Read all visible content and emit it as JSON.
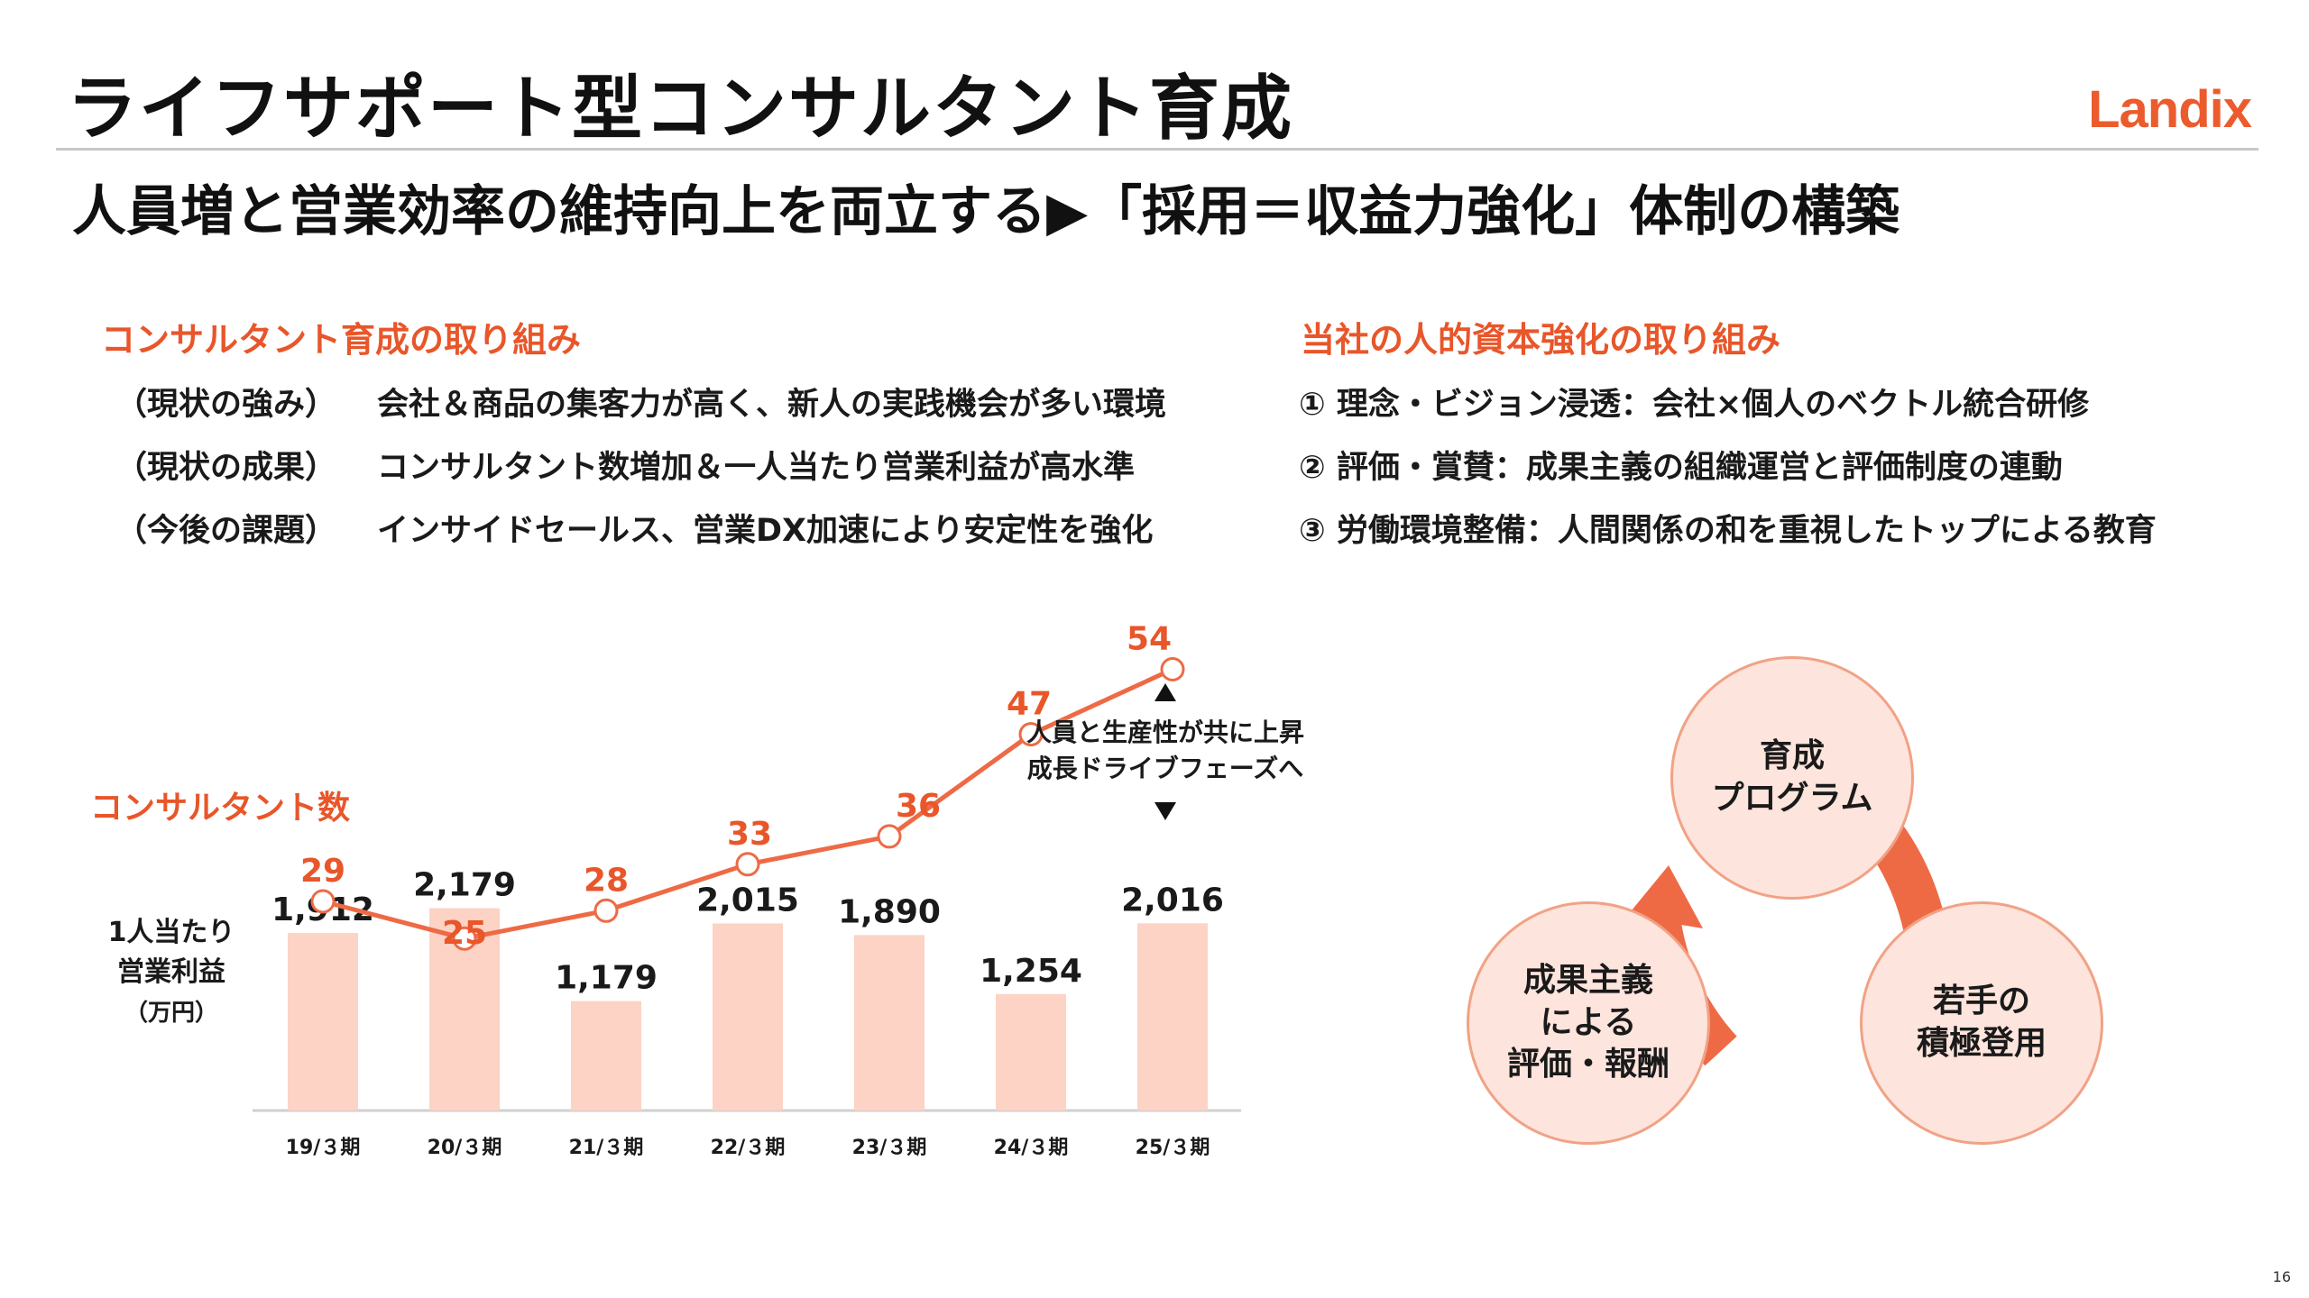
{
  "title": "ライフサポート型コンサルタント育成",
  "logo": "Landix",
  "subtitle": "人員増と営業効率の維持向上を両立する▶「採用＝収益力強化」体制の構築",
  "left_section": {
    "heading": "コンサルタント育成の取り組み",
    "rows": [
      {
        "label": "（現状の強み）",
        "text": "会社＆商品の集客力が高く、新人の実践機会が多い環境"
      },
      {
        "label": "（現状の成果）",
        "text": "コンサルタント数増加＆一人当たり営業利益が高水準"
      },
      {
        "label": "（今後の課題）",
        "text": "インサイドセールス、営業DX加速により安定性を強化"
      }
    ]
  },
  "right_section": {
    "heading": "当社の人的資本強化の取り組み",
    "items": [
      "① 理念・ビジョン浸透：会社×個人のベクトル統合研修",
      "② 評価・賞賛：成果主義の組織運営と評価制度の連動",
      "③ 労働環境整備：人間関係の和を重視したトップによる教育"
    ]
  },
  "cycle": {
    "top": "育成\nプログラム",
    "left": "成果主義\nによる\n評価・報酬",
    "right": "若手の\n積極登用"
  },
  "chart_data": {
    "type": "bar",
    "categories": [
      "19/３期",
      "20/３期",
      "21/３期",
      "22/３期",
      "23/３期",
      "24/３期",
      "25/３期"
    ],
    "series": [
      {
        "name": "1人当たり\n営業利益\n（万円）",
        "kind": "bar",
        "values": [
          1912,
          2179,
          1179,
          2015,
          1890,
          1254,
          2016
        ],
        "labels": [
          "1,912",
          "2,179",
          "1,179",
          "2,015",
          "1,890",
          "1,254",
          "2,016"
        ]
      },
      {
        "name": "コンサルタント数",
        "kind": "line",
        "values": [
          29,
          25,
          28,
          33,
          36,
          47,
          54
        ]
      }
    ],
    "annotation": "人員と生産性が共に上昇\n成長ドライブフェーズへ",
    "colors": {
      "bar": "#fcd3c5",
      "line": "#ee6a45",
      "line_label": "#e8562a"
    }
  },
  "page_number": "16"
}
